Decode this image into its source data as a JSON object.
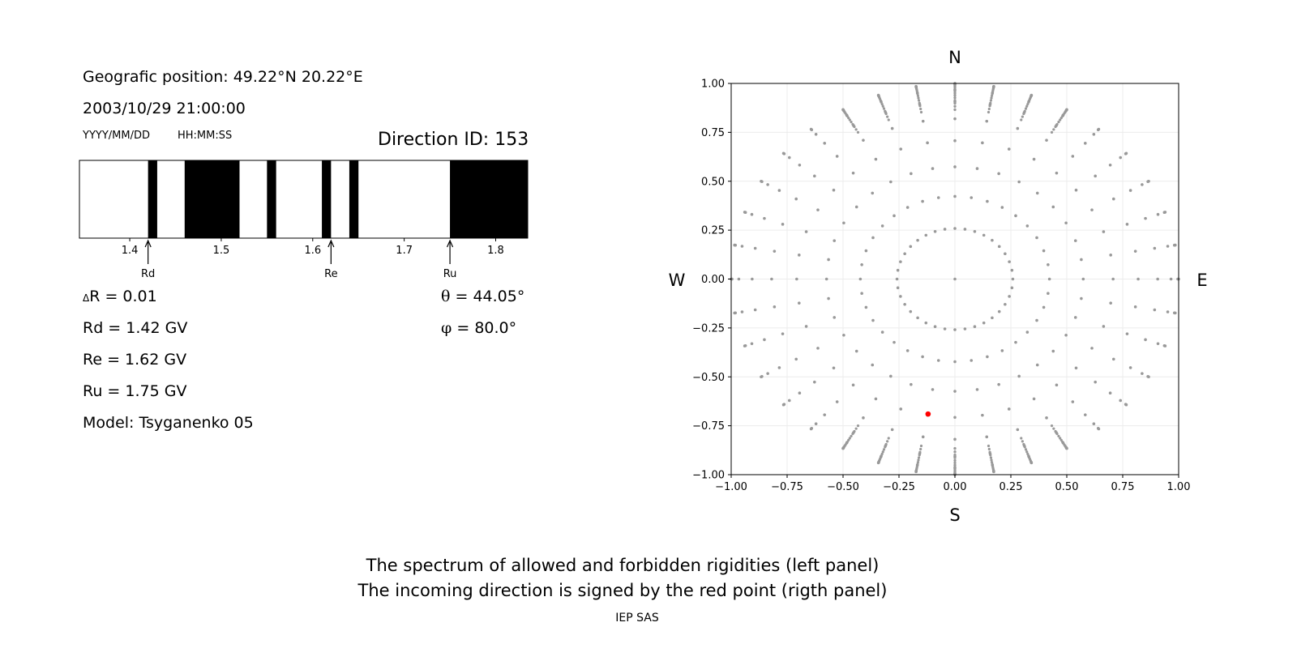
{
  "left_panel": {
    "geo_position": "Geografic position: 49.22°N 20.22°E",
    "datetime": "2003/10/29 21:00:00",
    "date_format": "YYYY/MM/DD",
    "time_format": "HH:MM:SS",
    "direction_id": "Direction ID: 153",
    "delta_r_symbol": "Δ",
    "delta_r": "R = 0.01",
    "rd": "Rd = 1.42 GV",
    "re": "Re = 1.62 GV",
    "ru": "Ru = 1.75 GV",
    "model": "Model: Tsyganenko 05",
    "theta_symbol": "θ",
    "theta": "= 44.05°",
    "phi_symbol": "φ",
    "phi": "= 80.0°"
  },
  "footer": {
    "caption_line1": "The spectrum of allowed and forbidden rigidities (left panel)",
    "caption_line2": "The incoming direction is signed by the red point (rigth panel)",
    "institute": "IEP SAS"
  },
  "chart_data": [
    {
      "type": "bar",
      "subtype": "rigidity-spectrum",
      "xlim": [
        1.345,
        1.835
      ],
      "xticks": [
        "1.4",
        "1.5",
        "1.6",
        "1.7",
        "1.8"
      ],
      "forbidden_bands": [
        [
          1.42,
          1.43
        ],
        [
          1.46,
          1.52
        ],
        [
          1.55,
          1.56
        ],
        [
          1.61,
          1.62
        ],
        [
          1.64,
          1.65
        ],
        [
          1.75,
          1.84
        ]
      ],
      "markers": [
        {
          "label": "Rd",
          "value": 1.42
        },
        {
          "label": "Re",
          "value": 1.62
        },
        {
          "label": "Ru",
          "value": 1.75
        }
      ],
      "colors": {
        "forbidden": "#000000",
        "allowed": "#ffffff"
      }
    },
    {
      "type": "scatter",
      "subtype": "direction-map",
      "xlim": [
        -1.0,
        1.0
      ],
      "ylim": [
        -1.0,
        1.0
      ],
      "xticks": [
        "−1.00",
        "−0.75",
        "−0.50",
        "−0.25",
        "0.00",
        "0.25",
        "0.50",
        "0.75",
        "1.00"
      ],
      "yticks": [
        "−1.00",
        "−0.75",
        "−0.50",
        "−0.25",
        "0.00",
        "0.25",
        "0.50",
        "0.75",
        "1.00"
      ],
      "grid": true,
      "compass": {
        "north": "N",
        "south": "S",
        "west": "W",
        "east": "E"
      },
      "grid_points": {
        "zenith_rings_deg": [
          0,
          15,
          25,
          35,
          45,
          55,
          65,
          75,
          85,
          90
        ],
        "azimuth_step_deg": 10,
        "color": "#999999"
      },
      "highlight_point": {
        "x": -0.12,
        "y": -0.69,
        "color": "#ff0000"
      }
    }
  ]
}
